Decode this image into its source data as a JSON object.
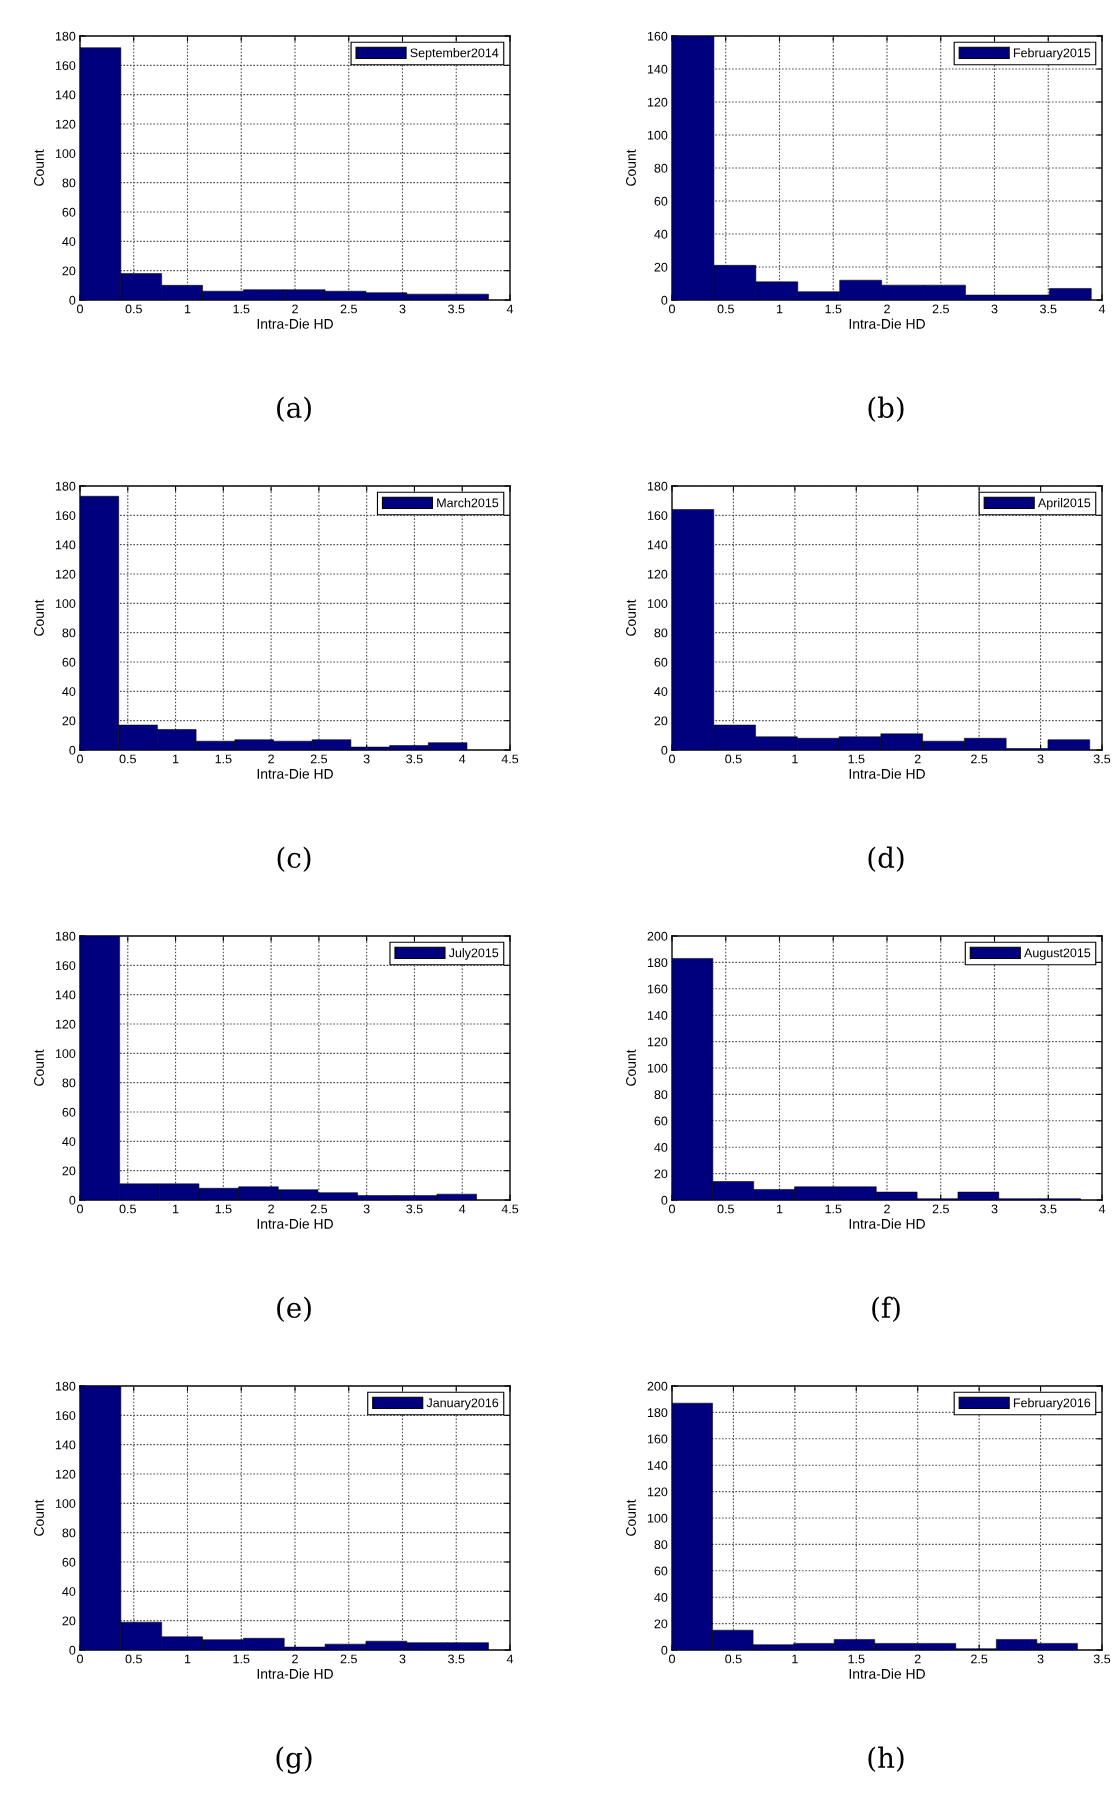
{
  "chart_data": [
    {
      "type": "histogram",
      "xlabel": "Intra-Die HD",
      "ylabel": "Count",
      "annotations": [
        "(a)"
      ],
      "bins": [
        0,
        0.38,
        0.76,
        1.14,
        1.52,
        1.9,
        2.28,
        2.66,
        3.04,
        3.42,
        3.8
      ],
      "series": [
        {
          "name": "September2014",
          "color": "#00007f",
          "values": [
            172,
            18,
            10,
            6,
            7,
            7,
            6,
            5,
            4,
            4
          ]
        }
      ],
      "xlim": [
        0,
        4
      ],
      "xticks": [
        0,
        0.5,
        1,
        1.5,
        2,
        2.5,
        3,
        3.5,
        4
      ],
      "ylim": [
        0,
        180
      ],
      "yticks": [
        0,
        20,
        40,
        60,
        80,
        100,
        120,
        140,
        160,
        180
      ],
      "grid": true,
      "legend": "top right"
    },
    {
      "type": "histogram",
      "xlabel": "Intra-Die HD",
      "ylabel": "Count",
      "annotations": [
        "(b)"
      ],
      "bins": [
        0,
        0.39,
        0.78,
        1.17,
        1.56,
        1.95,
        2.34,
        2.73,
        3.12,
        3.51,
        3.9
      ],
      "series": [
        {
          "name": "February2015",
          "color": "#00007f",
          "values": [
            160,
            21,
            11,
            5,
            12,
            9,
            9,
            3,
            3,
            7
          ]
        }
      ],
      "xlim": [
        0,
        4
      ],
      "xticks": [
        0,
        0.5,
        1,
        1.5,
        2,
        2.5,
        3,
        3.5,
        4
      ],
      "ylim": [
        0,
        160
      ],
      "yticks": [
        0,
        20,
        40,
        60,
        80,
        100,
        120,
        140,
        160
      ],
      "grid": true,
      "legend": "top right"
    },
    {
      "type": "histogram",
      "xlabel": "Intra-Die HD",
      "ylabel": "Count",
      "annotations": [
        "(c)"
      ],
      "bins": [
        0,
        0.405,
        0.81,
        1.215,
        1.62,
        2.025,
        2.43,
        2.835,
        3.24,
        3.645,
        4.05
      ],
      "series": [
        {
          "name": "March2015",
          "color": "#00007f",
          "values": [
            173,
            17,
            14,
            6,
            7,
            6,
            7,
            2,
            3,
            5
          ]
        }
      ],
      "xlim": [
        0,
        4.5
      ],
      "xticks": [
        0,
        0.5,
        1,
        1.5,
        2,
        2.5,
        3,
        3.5,
        4,
        4.5
      ],
      "ylim": [
        0,
        180
      ],
      "yticks": [
        0,
        20,
        40,
        60,
        80,
        100,
        120,
        140,
        160,
        180
      ],
      "grid": true,
      "legend": "top right"
    },
    {
      "type": "histogram",
      "xlabel": "Intra-Die HD",
      "ylabel": "Count",
      "annotations": [
        "(d)"
      ],
      "bins": [
        0,
        0.34,
        0.68,
        1.02,
        1.36,
        1.7,
        2.04,
        2.38,
        2.72,
        3.06,
        3.4
      ],
      "series": [
        {
          "name": "April2015",
          "color": "#00007f",
          "values": [
            164,
            17,
            9,
            8,
            9,
            11,
            6,
            8,
            1,
            7
          ]
        }
      ],
      "xlim": [
        0,
        3.5
      ],
      "xticks": [
        0,
        0.5,
        1,
        1.5,
        2,
        2.5,
        3,
        3.5
      ],
      "ylim": [
        0,
        180
      ],
      "yticks": [
        0,
        20,
        40,
        60,
        80,
        100,
        120,
        140,
        160,
        180
      ],
      "grid": true,
      "legend": "top right"
    },
    {
      "type": "histogram",
      "xlabel": "Intra-Die HD",
      "ylabel": "Count",
      "annotations": [
        "(e)"
      ],
      "bins": [
        0,
        0.415,
        0.83,
        1.245,
        1.66,
        2.075,
        2.49,
        2.905,
        3.32,
        3.735,
        4.15
      ],
      "series": [
        {
          "name": "July2015",
          "color": "#00007f",
          "values": [
            180,
            11,
            11,
            8,
            9,
            7,
            5,
            3,
            3,
            4
          ]
        }
      ],
      "xlim": [
        0,
        4.5
      ],
      "xticks": [
        0,
        0.5,
        1,
        1.5,
        2,
        2.5,
        3,
        3.5,
        4,
        4.5
      ],
      "ylim": [
        0,
        180
      ],
      "yticks": [
        0,
        20,
        40,
        60,
        80,
        100,
        120,
        140,
        160,
        180
      ],
      "grid": true,
      "legend": "top right"
    },
    {
      "type": "histogram",
      "xlabel": "Intra-Die HD",
      "ylabel": "Count",
      "annotations": [
        "(f)"
      ],
      "bins": [
        0,
        0.38,
        0.76,
        1.14,
        1.52,
        1.9,
        2.28,
        2.66,
        3.04,
        3.42,
        3.8
      ],
      "series": [
        {
          "name": "August2015",
          "color": "#00007f",
          "values": [
            183,
            14,
            8,
            10,
            10,
            6,
            1,
            6,
            1,
            1
          ]
        }
      ],
      "xlim": [
        0,
        4
      ],
      "xticks": [
        0,
        0.5,
        1,
        1.5,
        2,
        2.5,
        3,
        3.5,
        4
      ],
      "ylim": [
        0,
        200
      ],
      "yticks": [
        0,
        20,
        40,
        60,
        80,
        100,
        120,
        140,
        160,
        180,
        200
      ],
      "grid": true,
      "legend": "top right"
    },
    {
      "type": "histogram",
      "xlabel": "Intra-Die HD",
      "ylabel": "Count",
      "annotations": [
        "(g)"
      ],
      "bins": [
        0,
        0.38,
        0.76,
        1.14,
        1.52,
        1.9,
        2.28,
        2.66,
        3.04,
        3.42,
        3.8
      ],
      "series": [
        {
          "name": "January2016",
          "color": "#00007f",
          "values": [
            180,
            19,
            9,
            7,
            8,
            2,
            4,
            6,
            5,
            5
          ]
        }
      ],
      "xlim": [
        0,
        4
      ],
      "xticks": [
        0,
        0.5,
        1,
        1.5,
        2,
        2.5,
        3,
        3.5,
        4
      ],
      "ylim": [
        0,
        180
      ],
      "yticks": [
        0,
        20,
        40,
        60,
        80,
        100,
        120,
        140,
        160,
        180
      ],
      "grid": true,
      "legend": "top right"
    },
    {
      "type": "histogram",
      "xlabel": "Intra-Die HD",
      "ylabel": "Count",
      "annotations": [
        "(h)"
      ],
      "bins": [
        0,
        0.33,
        0.66,
        0.99,
        1.32,
        1.65,
        1.98,
        2.31,
        2.64,
        2.97,
        3.3
      ],
      "series": [
        {
          "name": "February2016",
          "color": "#00007f",
          "values": [
            187,
            15,
            4,
            5,
            8,
            5,
            5,
            1,
            8,
            5
          ]
        }
      ],
      "xlim": [
        0,
        3.5
      ],
      "xticks": [
        0,
        0.5,
        1,
        1.5,
        2,
        2.5,
        3,
        3.5
      ],
      "ylim": [
        0,
        200
      ],
      "yticks": [
        0,
        20,
        40,
        60,
        80,
        100,
        120,
        140,
        160,
        180,
        200
      ],
      "grid": true,
      "legend": "top right"
    }
  ]
}
